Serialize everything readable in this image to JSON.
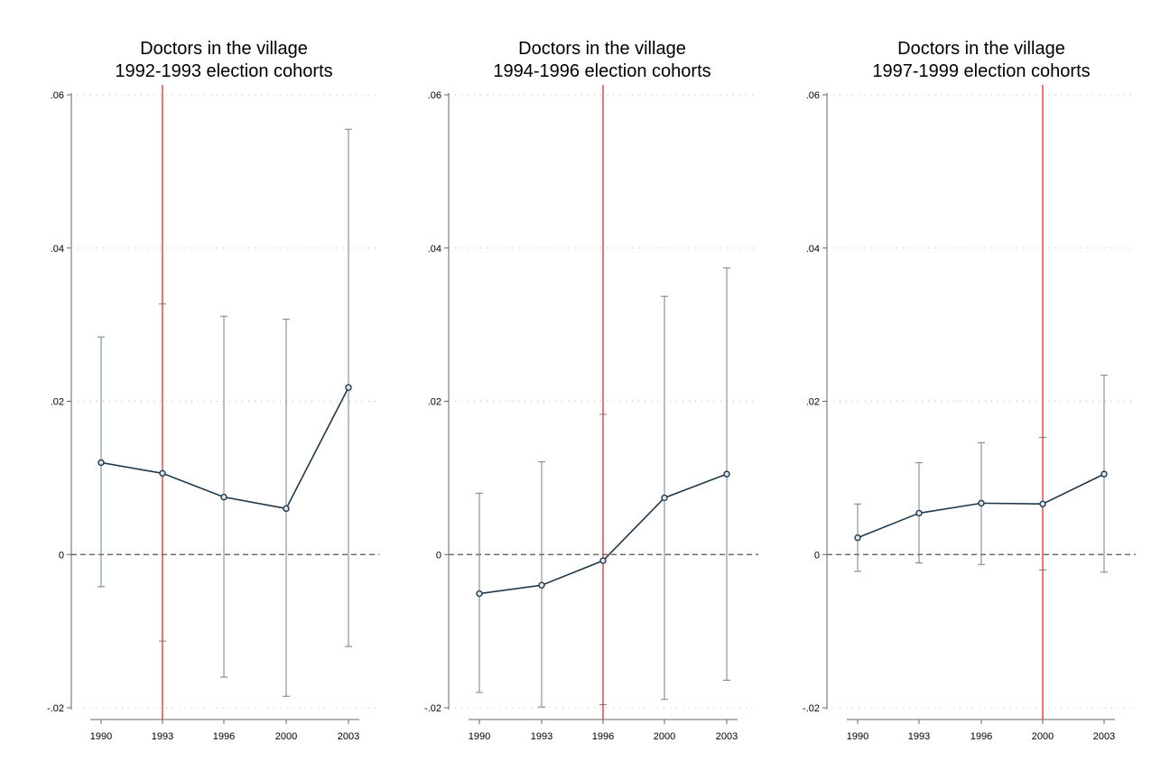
{
  "chart_data": [
    {
      "type": "line",
      "title": [
        "Doctors in the village",
        "1992-1993 election cohorts"
      ],
      "x": [
        "1990",
        "1993",
        "1996",
        "2000",
        "2003"
      ],
      "y": [
        0.012,
        0.0106,
        0.0075,
        0.006,
        0.0218
      ],
      "ci_low": [
        -0.0042,
        -0.0113,
        -0.016,
        -0.0185,
        -0.012
      ],
      "ci_high": [
        0.0284,
        0.0327,
        0.0311,
        0.0307,
        0.0555
      ],
      "reference_x": "1993",
      "ylim": [
        -0.02,
        0.06
      ],
      "yticks": [
        -0.02,
        0,
        0.02,
        0.04,
        0.06
      ],
      "ytick_labels": [
        "-.02",
        "0",
        ".02",
        ".04",
        ".06"
      ],
      "grid": "horizontal dotted",
      "zero_line": "dashed"
    },
    {
      "type": "line",
      "title": [
        "Doctors in the village",
        "1994-1996 election cohorts"
      ],
      "x": [
        "1990",
        "1993",
        "1996",
        "2000",
        "2003"
      ],
      "y": [
        -0.0051,
        -0.004,
        -0.0008,
        0.0074,
        0.0105
      ],
      "ci_low": [
        -0.018,
        -0.0199,
        -0.0196,
        -0.0189,
        -0.0164
      ],
      "ci_high": [
        0.008,
        0.0121,
        0.0183,
        0.0337,
        0.0374
      ],
      "reference_x": "1996",
      "ylim": [
        -0.02,
        0.06
      ],
      "yticks": [
        -0.02,
        0,
        0.02,
        0.04,
        0.06
      ],
      "ytick_labels": [
        "-.02",
        "0",
        ".02",
        ".04",
        ".06"
      ],
      "grid": "horizontal dotted",
      "zero_line": "dashed"
    },
    {
      "type": "line",
      "title": [
        "Doctors in the village",
        "1997-1999 election cohorts"
      ],
      "x": [
        "1990",
        "1993",
        "1996",
        "2000",
        "2003"
      ],
      "y": [
        0.0022,
        0.0054,
        0.0067,
        0.0066,
        0.0105
      ],
      "ci_low": [
        -0.0022,
        -0.0011,
        -0.0013,
        -0.002,
        -0.0023
      ],
      "ci_high": [
        0.0066,
        0.012,
        0.0146,
        0.0153,
        0.0234
      ],
      "reference_x": "2000",
      "ylim": [
        -0.02,
        0.06
      ],
      "yticks": [
        -0.02,
        0,
        0.02,
        0.04,
        0.06
      ],
      "ytick_labels": [
        "-.02",
        "0",
        ".02",
        ".04",
        ".06"
      ],
      "grid": "horizontal dotted",
      "zero_line": "dashed"
    }
  ],
  "colors": {
    "series": "#1f3a4d",
    "ci": "#6b8191",
    "reference": "#e0201b",
    "axis": "#666666",
    "grid": "#b8b8b8",
    "zero": "#555555"
  }
}
